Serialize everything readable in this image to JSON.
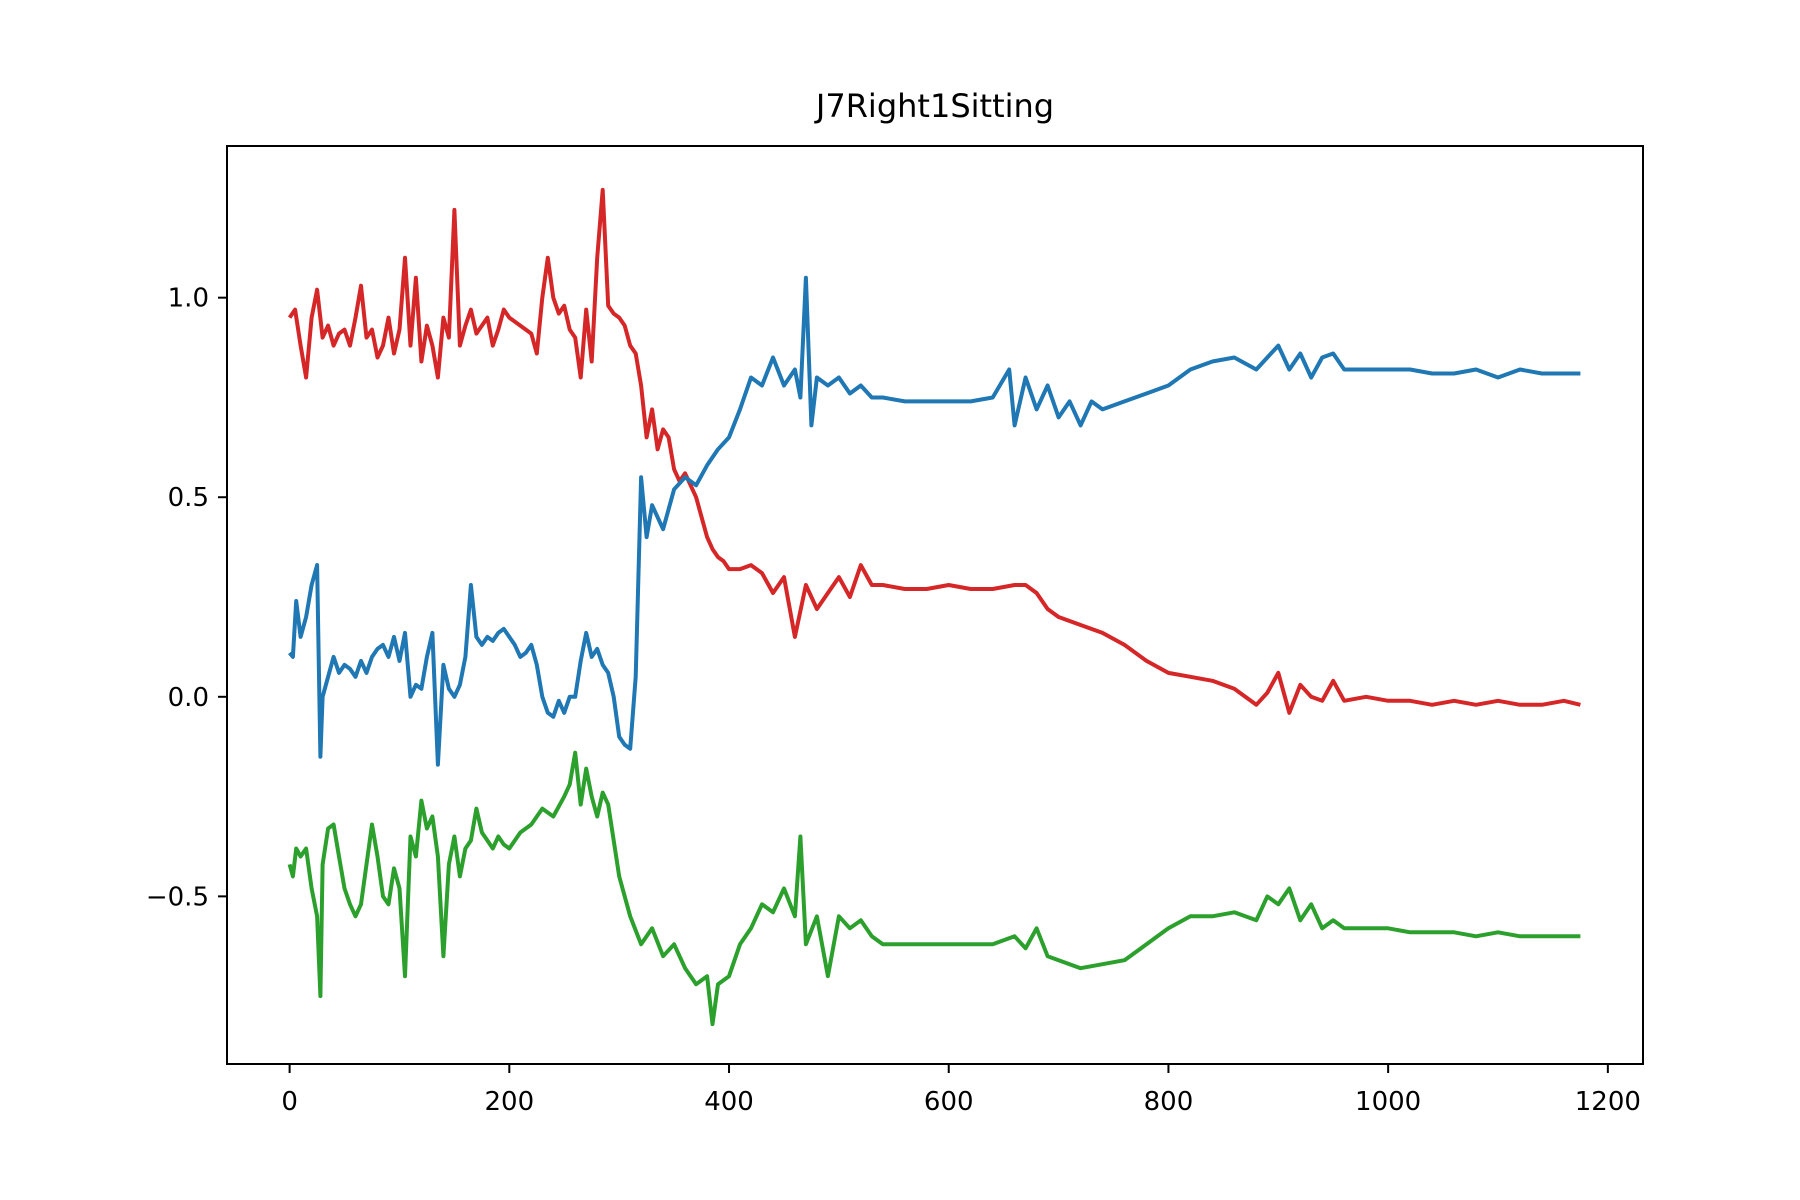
{
  "chart_data": {
    "type": "line",
    "title": "J7Right1Sitting",
    "xlabel": "",
    "ylabel": "",
    "xlim": [
      -57,
      1232
    ],
    "ylim": [
      -0.92,
      1.38
    ],
    "xticks": [
      0,
      200,
      400,
      600,
      800,
      1000,
      1200
    ],
    "yticks": [
      -0.5,
      0.0,
      0.5,
      1.0
    ],
    "xtick_labels": [
      "0",
      "200",
      "400",
      "600",
      "800",
      "1000",
      "1200"
    ],
    "ytick_labels": [
      "−0.5",
      "0.0",
      "0.5",
      "1.0"
    ],
    "grid": false,
    "legend": "none",
    "series": [
      {
        "color": "#d62728",
        "x": [
          0,
          5,
          10,
          15,
          20,
          25,
          30,
          35,
          40,
          45,
          50,
          55,
          60,
          65,
          70,
          75,
          80,
          85,
          90,
          95,
          100,
          105,
          110,
          115,
          120,
          125,
          130,
          135,
          140,
          145,
          150,
          155,
          160,
          165,
          170,
          175,
          180,
          185,
          190,
          195,
          200,
          210,
          220,
          225,
          230,
          235,
          240,
          245,
          250,
          255,
          260,
          265,
          270,
          275,
          280,
          285,
          290,
          295,
          300,
          305,
          310,
          315,
          320,
          325,
          330,
          335,
          340,
          345,
          350,
          355,
          360,
          365,
          370,
          375,
          380,
          385,
          390,
          395,
          400,
          410,
          420,
          430,
          440,
          450,
          460,
          470,
          480,
          490,
          500,
          510,
          520,
          530,
          540,
          560,
          580,
          600,
          620,
          640,
          660,
          670,
          680,
          690,
          700,
          720,
          740,
          760,
          780,
          800,
          820,
          840,
          860,
          870,
          880,
          890,
          900,
          910,
          920,
          930,
          940,
          950,
          960,
          980,
          1000,
          1020,
          1040,
          1060,
          1080,
          1100,
          1120,
          1140,
          1160,
          1175
        ],
        "y": [
          0.95,
          0.97,
          0.88,
          0.8,
          0.95,
          1.02,
          0.9,
          0.93,
          0.88,
          0.91,
          0.92,
          0.88,
          0.95,
          1.03,
          0.9,
          0.92,
          0.85,
          0.88,
          0.95,
          0.86,
          0.92,
          1.1,
          0.88,
          1.05,
          0.84,
          0.93,
          0.88,
          0.8,
          0.95,
          0.9,
          1.22,
          0.88,
          0.93,
          0.97,
          0.91,
          0.93,
          0.95,
          0.88,
          0.92,
          0.97,
          0.95,
          0.93,
          0.91,
          0.86,
          1.0,
          1.1,
          1.0,
          0.96,
          0.98,
          0.92,
          0.9,
          0.8,
          0.97,
          0.84,
          1.1,
          1.27,
          0.98,
          0.96,
          0.95,
          0.93,
          0.88,
          0.86,
          0.78,
          0.65,
          0.72,
          0.62,
          0.67,
          0.65,
          0.57,
          0.54,
          0.56,
          0.53,
          0.5,
          0.45,
          0.4,
          0.37,
          0.35,
          0.34,
          0.32,
          0.32,
          0.33,
          0.31,
          0.26,
          0.3,
          0.15,
          0.28,
          0.22,
          0.26,
          0.3,
          0.25,
          0.33,
          0.28,
          0.28,
          0.27,
          0.27,
          0.28,
          0.27,
          0.27,
          0.28,
          0.28,
          0.26,
          0.22,
          0.2,
          0.18,
          0.16,
          0.13,
          0.09,
          0.06,
          0.05,
          0.04,
          0.02,
          0.0,
          -0.02,
          0.01,
          0.06,
          -0.04,
          0.03,
          0.0,
          -0.01,
          0.04,
          -0.01,
          0.0,
          -0.01,
          -0.01,
          -0.02,
          -0.01,
          -0.02,
          -0.01,
          -0.02,
          -0.02,
          -0.01,
          -0.02
        ]
      },
      {
        "color": "#1f77b4",
        "x": [
          0,
          3,
          6,
          10,
          15,
          20,
          25,
          28,
          30,
          35,
          40,
          45,
          50,
          55,
          60,
          65,
          70,
          75,
          80,
          85,
          90,
          95,
          100,
          105,
          110,
          115,
          120,
          125,
          130,
          135,
          140,
          145,
          150,
          155,
          160,
          165,
          170,
          175,
          180,
          185,
          190,
          195,
          200,
          205,
          210,
          215,
          220,
          225,
          230,
          235,
          240,
          245,
          250,
          255,
          260,
          265,
          270,
          275,
          280,
          285,
          290,
          295,
          300,
          305,
          310,
          315,
          320,
          325,
          330,
          340,
          350,
          360,
          370,
          380,
          390,
          400,
          410,
          420,
          430,
          440,
          450,
          460,
          465,
          470,
          475,
          480,
          490,
          500,
          510,
          520,
          530,
          540,
          560,
          580,
          600,
          620,
          640,
          655,
          660,
          670,
          680,
          690,
          700,
          710,
          720,
          730,
          740,
          760,
          780,
          800,
          820,
          840,
          860,
          880,
          890,
          900,
          910,
          920,
          930,
          940,
          950,
          960,
          980,
          1000,
          1020,
          1040,
          1060,
          1080,
          1100,
          1120,
          1140,
          1160,
          1175
        ],
        "y": [
          0.11,
          0.1,
          0.24,
          0.15,
          0.2,
          0.28,
          0.33,
          -0.15,
          0.0,
          0.05,
          0.1,
          0.06,
          0.08,
          0.07,
          0.05,
          0.09,
          0.06,
          0.1,
          0.12,
          0.13,
          0.1,
          0.15,
          0.09,
          0.16,
          0.0,
          0.03,
          0.02,
          0.1,
          0.16,
          -0.17,
          0.08,
          0.02,
          0.0,
          0.03,
          0.1,
          0.28,
          0.15,
          0.13,
          0.15,
          0.14,
          0.16,
          0.17,
          0.15,
          0.13,
          0.1,
          0.11,
          0.13,
          0.08,
          0.0,
          -0.04,
          -0.05,
          -0.01,
          -0.04,
          0.0,
          0.0,
          0.09,
          0.16,
          0.1,
          0.12,
          0.08,
          0.06,
          0.0,
          -0.1,
          -0.12,
          -0.13,
          0.05,
          0.55,
          0.4,
          0.48,
          0.42,
          0.52,
          0.55,
          0.53,
          0.58,
          0.62,
          0.65,
          0.72,
          0.8,
          0.78,
          0.85,
          0.78,
          0.82,
          0.75,
          1.05,
          0.68,
          0.8,
          0.78,
          0.8,
          0.76,
          0.78,
          0.75,
          0.75,
          0.74,
          0.74,
          0.74,
          0.74,
          0.75,
          0.82,
          0.68,
          0.8,
          0.72,
          0.78,
          0.7,
          0.74,
          0.68,
          0.74,
          0.72,
          0.74,
          0.76,
          0.78,
          0.82,
          0.84,
          0.85,
          0.82,
          0.85,
          0.88,
          0.82,
          0.86,
          0.8,
          0.85,
          0.86,
          0.82,
          0.82,
          0.82,
          0.82,
          0.81,
          0.81,
          0.82,
          0.8,
          0.82,
          0.81,
          0.81,
          0.81
        ]
      },
      {
        "color": "#2ca02c",
        "x": [
          0,
          3,
          6,
          10,
          15,
          20,
          25,
          28,
          30,
          35,
          40,
          45,
          50,
          55,
          60,
          65,
          70,
          75,
          80,
          85,
          90,
          95,
          100,
          105,
          110,
          115,
          120,
          125,
          130,
          135,
          140,
          145,
          150,
          155,
          160,
          165,
          170,
          175,
          180,
          185,
          190,
          195,
          200,
          210,
          220,
          230,
          240,
          250,
          255,
          260,
          265,
          270,
          275,
          280,
          285,
          290,
          300,
          310,
          320,
          330,
          340,
          350,
          360,
          370,
          380,
          385,
          390,
          400,
          410,
          420,
          430,
          440,
          450,
          460,
          465,
          470,
          480,
          490,
          500,
          510,
          520,
          530,
          540,
          560,
          580,
          600,
          620,
          640,
          660,
          670,
          680,
          690,
          700,
          720,
          740,
          760,
          780,
          800,
          820,
          840,
          860,
          880,
          890,
          900,
          910,
          920,
          930,
          940,
          950,
          960,
          980,
          1000,
          1020,
          1040,
          1060,
          1080,
          1100,
          1120,
          1140,
          1160,
          1175
        ],
        "y": [
          -0.42,
          -0.45,
          -0.38,
          -0.4,
          -0.38,
          -0.48,
          -0.55,
          -0.75,
          -0.42,
          -0.33,
          -0.32,
          -0.4,
          -0.48,
          -0.52,
          -0.55,
          -0.52,
          -0.42,
          -0.32,
          -0.4,
          -0.5,
          -0.52,
          -0.43,
          -0.48,
          -0.7,
          -0.35,
          -0.4,
          -0.26,
          -0.33,
          -0.3,
          -0.4,
          -0.65,
          -0.42,
          -0.35,
          -0.45,
          -0.38,
          -0.36,
          -0.28,
          -0.34,
          -0.36,
          -0.38,
          -0.35,
          -0.37,
          -0.38,
          -0.34,
          -0.32,
          -0.28,
          -0.3,
          -0.25,
          -0.22,
          -0.14,
          -0.27,
          -0.18,
          -0.25,
          -0.3,
          -0.24,
          -0.27,
          -0.45,
          -0.55,
          -0.62,
          -0.58,
          -0.65,
          -0.62,
          -0.68,
          -0.72,
          -0.7,
          -0.82,
          -0.72,
          -0.7,
          -0.62,
          -0.58,
          -0.52,
          -0.54,
          -0.48,
          -0.55,
          -0.35,
          -0.62,
          -0.55,
          -0.7,
          -0.55,
          -0.58,
          -0.56,
          -0.6,
          -0.62,
          -0.62,
          -0.62,
          -0.62,
          -0.62,
          -0.62,
          -0.6,
          -0.63,
          -0.58,
          -0.65,
          -0.66,
          -0.68,
          -0.67,
          -0.66,
          -0.62,
          -0.58,
          -0.55,
          -0.55,
          -0.54,
          -0.56,
          -0.5,
          -0.52,
          -0.48,
          -0.56,
          -0.52,
          -0.58,
          -0.56,
          -0.58,
          -0.58,
          -0.58,
          -0.59,
          -0.59,
          -0.59,
          -0.6,
          -0.59,
          -0.6,
          -0.6,
          -0.6,
          -0.6
        ]
      }
    ]
  }
}
